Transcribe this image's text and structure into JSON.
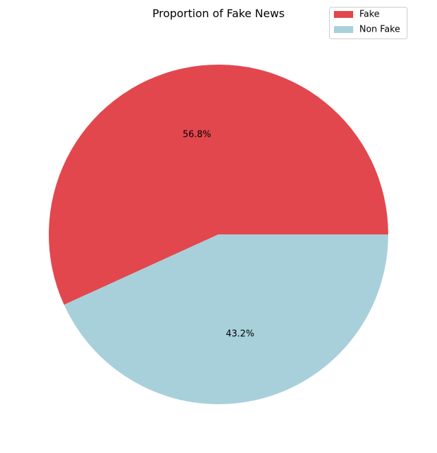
{
  "chart_data": {
    "type": "pie",
    "title": "Proportion of Fake News",
    "categories": [
      "Fake",
      "Non Fake"
    ],
    "values": [
      56.8,
      43.2
    ],
    "labels": [
      "56.8%",
      "43.2%"
    ],
    "colors": [
      "#e2474d",
      "#a8d0da"
    ],
    "start_angle_deg": 0,
    "direction": "counterclockwise",
    "legend_placement": "top-right"
  }
}
